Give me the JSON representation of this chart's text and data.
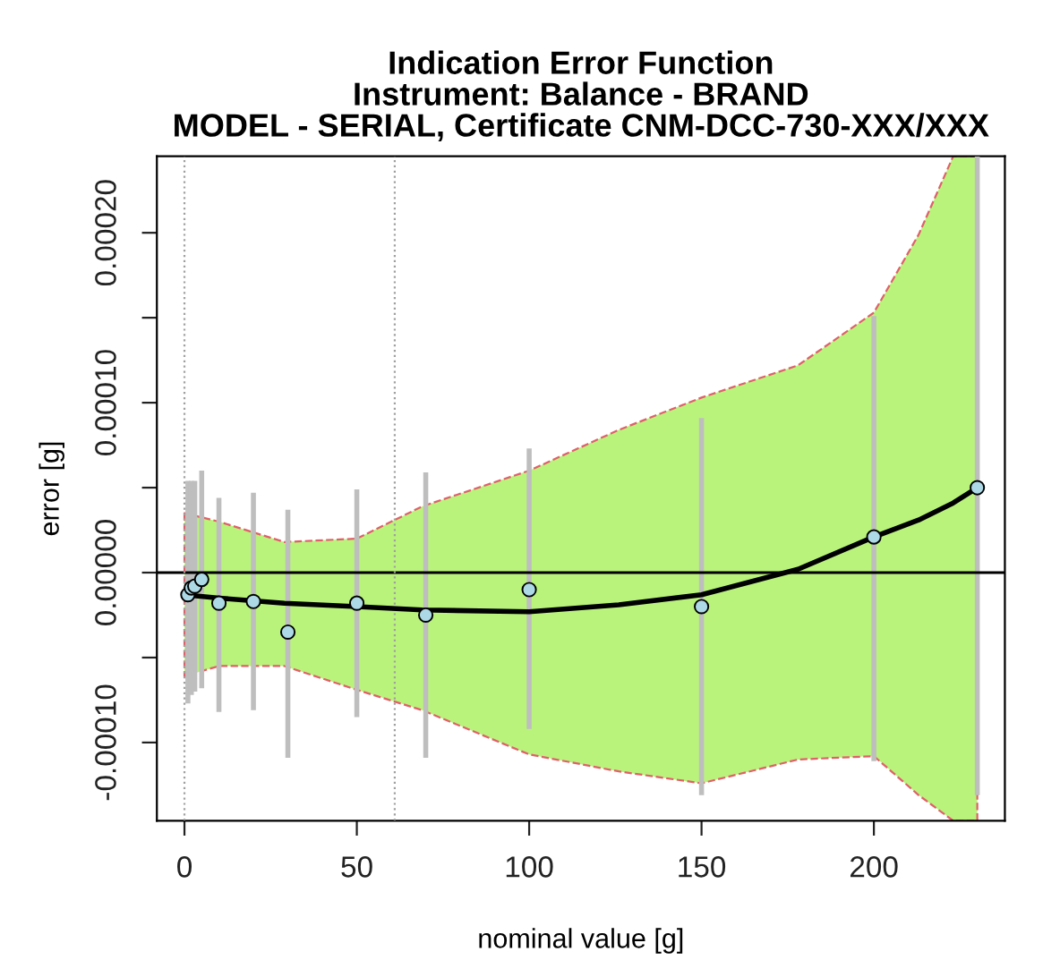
{
  "chart_data": {
    "type": "scatter",
    "title": "Indication Error Function\nInstrument: Balance - BRAND\nMODEL - SERIAL, Certificate CNM-DCC-730-XXX/XXX",
    "xlabel": "nominal value [g]",
    "ylabel": "error [g]",
    "xlim": [
      -8,
      238
    ],
    "ylim": [
      -0.000146,
      0.000245
    ],
    "xticks": [
      0,
      50,
      100,
      150,
      200
    ],
    "yticks": [
      {
        "value": -0.0001,
        "label": "-0.00010"
      },
      {
        "value": -5e-05,
        "label": null
      },
      {
        "value": 0,
        "label": "0.00000"
      },
      {
        "value": 5e-05,
        "label": null
      },
      {
        "value": 0.0001,
        "label": "0.00010"
      },
      {
        "value": 0.00015,
        "label": null
      },
      {
        "value": 0.0002,
        "label": "0.00020"
      }
    ],
    "grid": false,
    "legend": false,
    "marker": "circle",
    "ref_lines": [
      {
        "axis": "y",
        "value": 0,
        "color": "#000000",
        "line_style": "solid"
      },
      {
        "axis": "x",
        "value": 0,
        "color": "#a0a0a0",
        "line_style": "dotted"
      },
      {
        "axis": "x",
        "value": 61,
        "color": "#a0a0a0",
        "line_style": "dotted"
      }
    ],
    "series": [
      {
        "type": "line",
        "marker": "none",
        "color": "#000000",
        "line_style": "solid",
        "x": [
          0,
          10,
          29,
          50,
          69,
          100,
          126,
          150,
          178,
          200,
          213,
          223,
          230
        ],
        "values": [
          -1.3e-05,
          -1.5e-05,
          -1.8e-05,
          -2e-05,
          -2.2e-05,
          -2.3e-05,
          -1.9e-05,
          -1.3e-05,
          2e-06,
          2.1e-05,
          3.1e-05,
          4.1e-05,
          5e-05
        ],
        "upper": [
          3.5e-05,
          3e-05,
          1.8e-05,
          2e-05,
          3.9e-05,
          6e-05,
          8.4e-05,
          0.000103,
          0.000122,
          0.000153,
          0.000199,
          0.000245,
          0.000245
        ],
        "lower": [
          -6.1e-05,
          -5.5e-05,
          -5.5e-05,
          -6.9e-05,
          -8.1e-05,
          -0.000107,
          -0.000117,
          -0.000124,
          -0.00011,
          -0.000108,
          -0.000131,
          -0.000146,
          -0.000146
        ]
      },
      {
        "color": "#add8e6",
        "x": [
          1,
          2,
          3,
          5,
          10,
          20,
          30,
          50,
          70,
          100,
          150,
          200,
          230
        ],
        "values": [
          -1.3e-05,
          -9e-06,
          -8e-06,
          -4e-06,
          -1.8e-05,
          -1.7e-05,
          -3.5e-05,
          -1.8e-05,
          -2.5e-05,
          -1e-05,
          -2e-05,
          2.1e-05,
          5e-05
        ],
        "errors": [
          [
            -7.7e-05,
            5.4e-05
          ],
          [
            -7.2e-05,
            5.4e-05
          ],
          [
            -7e-05,
            5.4e-05
          ],
          [
            -6.8e-05,
            6e-05
          ],
          [
            -8.2e-05,
            4.4e-05
          ],
          [
            -8.1e-05,
            4.7e-05
          ],
          [
            -0.000109,
            3.7e-05
          ],
          [
            -8.5e-05,
            4.9e-05
          ],
          [
            -0.000109,
            5.9e-05
          ],
          [
            -9.2e-05,
            7.3e-05
          ],
          [
            -0.000131,
            9.1e-05
          ],
          [
            -0.000111,
            0.000151
          ],
          [
            -0.000131,
            0.000245
          ]
        ]
      }
    ]
  }
}
